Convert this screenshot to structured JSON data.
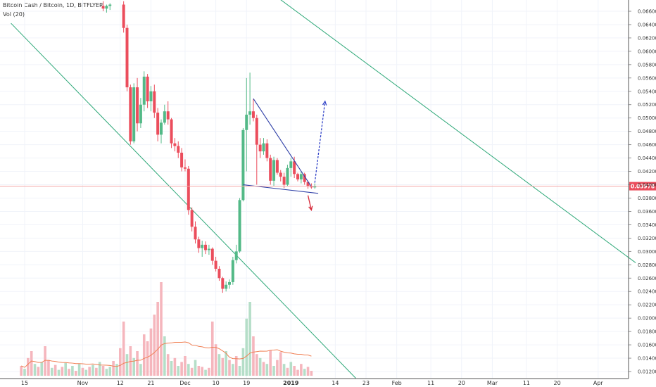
{
  "header": {
    "symbol_label": "Bitcoin Cash / Bitcoin, 1D, BITFLYER",
    "volume_label": "Vol (20)"
  },
  "colors": {
    "up": "#53b987",
    "down": "#eb4d5c",
    "up_volume": "#b5dec8",
    "down_volume": "#f5b6bd",
    "volume_ma": "#f07f53",
    "trendline": "#2ea878",
    "triangle": "#2d3ea6",
    "price_line": "#f3a6a6",
    "arrow_up": "#3244c8",
    "arrow_down": "#d62b3a"
  },
  "chart_data": {
    "type": "candlestick",
    "title": "",
    "y_range": [
      0.0118,
      0.067
    ],
    "y_ticks": [
      "0.06600",
      "0.06400",
      "0.06200",
      "0.06000",
      "0.05800",
      "0.05600",
      "0.05400",
      "0.05200",
      "0.05000",
      "0.04800",
      "0.04600",
      "0.04400",
      "0.04200",
      "0.04000",
      "0.03800",
      "0.03600",
      "0.03400",
      "0.03200",
      "0.03000",
      "0.02800",
      "0.02600",
      "0.02400",
      "0.02200",
      "0.02000",
      "0.01800",
      "0.01600",
      "0.01400",
      "0.01200"
    ],
    "x_ticks": [
      "15",
      "Nov",
      "12",
      "21",
      "Dec",
      "10",
      "19",
      "2019",
      "14",
      "23",
      "Feb",
      "11",
      "20",
      "Mar",
      "11",
      "20",
      "Apr"
    ],
    "last_price": "0.03978",
    "candles": [
      {
        "d": "Nov 07",
        "o": 0.0668,
        "h": 0.0675,
        "l": 0.066,
        "c": 0.0664
      },
      {
        "d": "Nov 08",
        "o": 0.0664,
        "h": 0.067,
        "l": 0.0658,
        "c": 0.0668
      },
      {
        "d": "Nov 09",
        "o": 0.0668,
        "h": 0.0672,
        "l": 0.0662,
        "c": 0.067
      },
      {
        "d": "Nov 13",
        "o": 0.067,
        "h": 0.0675,
        "l": 0.0628,
        "c": 0.0635
      },
      {
        "d": "Nov 14",
        "o": 0.0635,
        "h": 0.064,
        "l": 0.054,
        "c": 0.0546
      },
      {
        "d": "Nov 15",
        "o": 0.0546,
        "h": 0.055,
        "l": 0.046,
        "c": 0.0465
      },
      {
        "d": "Nov 16",
        "o": 0.0465,
        "h": 0.0552,
        "l": 0.0462,
        "c": 0.0546
      },
      {
        "d": "Nov 17",
        "o": 0.0546,
        "h": 0.056,
        "l": 0.048,
        "c": 0.0492
      },
      {
        "d": "Nov 18",
        "o": 0.0492,
        "h": 0.053,
        "l": 0.0485,
        "c": 0.052
      },
      {
        "d": "Nov 19",
        "o": 0.052,
        "h": 0.057,
        "l": 0.051,
        "c": 0.0562
      },
      {
        "d": "Nov 20",
        "o": 0.0562,
        "h": 0.0566,
        "l": 0.0515,
        "c": 0.0525
      },
      {
        "d": "Nov 21",
        "o": 0.0525,
        "h": 0.0548,
        "l": 0.051,
        "c": 0.054
      },
      {
        "d": "Nov 22",
        "o": 0.054,
        "h": 0.055,
        "l": 0.05,
        "c": 0.0508
      },
      {
        "d": "Nov 23",
        "o": 0.0508,
        "h": 0.0515,
        "l": 0.0465,
        "c": 0.0475
      },
      {
        "d": "Nov 24",
        "o": 0.0475,
        "h": 0.0498,
        "l": 0.0462,
        "c": 0.0493
      },
      {
        "d": "Nov 25",
        "o": 0.0493,
        "h": 0.052,
        "l": 0.049,
        "c": 0.051
      },
      {
        "d": "Nov 26",
        "o": 0.051,
        "h": 0.0525,
        "l": 0.049,
        "c": 0.0498
      },
      {
        "d": "Nov 27",
        "o": 0.0498,
        "h": 0.05,
        "l": 0.0455,
        "c": 0.0462
      },
      {
        "d": "Nov 28",
        "o": 0.0462,
        "h": 0.047,
        "l": 0.045,
        "c": 0.0458
      },
      {
        "d": "Nov 29",
        "o": 0.0458,
        "h": 0.0465,
        "l": 0.044,
        "c": 0.0448
      },
      {
        "d": "Nov 30",
        "o": 0.0448,
        "h": 0.0455,
        "l": 0.042,
        "c": 0.0426
      },
      {
        "d": "Dec 01",
        "o": 0.0426,
        "h": 0.0438,
        "l": 0.042,
        "c": 0.0424
      },
      {
        "d": "Dec 02",
        "o": 0.0424,
        "h": 0.0428,
        "l": 0.0355,
        "c": 0.0362
      },
      {
        "d": "Dec 03",
        "o": 0.0362,
        "h": 0.0366,
        "l": 0.033,
        "c": 0.0337
      },
      {
        "d": "Dec 04",
        "o": 0.0337,
        "h": 0.0345,
        "l": 0.0312,
        "c": 0.0318
      },
      {
        "d": "Dec 05",
        "o": 0.0318,
        "h": 0.0322,
        "l": 0.0298,
        "c": 0.0305
      },
      {
        "d": "Dec 06",
        "o": 0.0305,
        "h": 0.0316,
        "l": 0.0292,
        "c": 0.031
      },
      {
        "d": "Dec 07",
        "o": 0.031,
        "h": 0.0315,
        "l": 0.0296,
        "c": 0.0302
      },
      {
        "d": "Dec 08",
        "o": 0.0302,
        "h": 0.031,
        "l": 0.0295,
        "c": 0.0304
      },
      {
        "d": "Dec 09",
        "o": 0.0304,
        "h": 0.0306,
        "l": 0.028,
        "c": 0.0286
      },
      {
        "d": "Dec 10",
        "o": 0.0286,
        "h": 0.0292,
        "l": 0.027,
        "c": 0.0274
      },
      {
        "d": "Dec 11",
        "o": 0.0274,
        "h": 0.0278,
        "l": 0.0256,
        "c": 0.026
      },
      {
        "d": "Dec 12",
        "o": 0.026,
        "h": 0.0262,
        "l": 0.0238,
        "c": 0.0244
      },
      {
        "d": "Dec 13",
        "o": 0.0244,
        "h": 0.0255,
        "l": 0.024,
        "c": 0.025
      },
      {
        "d": "Dec 14",
        "o": 0.025,
        "h": 0.0258,
        "l": 0.0244,
        "c": 0.0254
      },
      {
        "d": "Dec 15",
        "o": 0.0254,
        "h": 0.0292,
        "l": 0.025,
        "c": 0.0287
      },
      {
        "d": "Dec 16",
        "o": 0.0287,
        "h": 0.031,
        "l": 0.0282,
        "c": 0.03
      },
      {
        "d": "Dec 17",
        "o": 0.03,
        "h": 0.038,
        "l": 0.0298,
        "c": 0.0377
      },
      {
        "d": "Dec 18",
        "o": 0.0377,
        "h": 0.0485,
        "l": 0.0375,
        "c": 0.0482
      },
      {
        "d": "Dec 19",
        "o": 0.0482,
        "h": 0.056,
        "l": 0.042,
        "c": 0.0505
      },
      {
        "d": "Dec 20",
        "o": 0.0505,
        "h": 0.0568,
        "l": 0.049,
        "c": 0.051
      },
      {
        "d": "Dec 21",
        "o": 0.051,
        "h": 0.0528,
        "l": 0.0495,
        "c": 0.05
      },
      {
        "d": "Dec 22",
        "o": 0.05,
        "h": 0.0505,
        "l": 0.04,
        "c": 0.046
      },
      {
        "d": "Dec 23",
        "o": 0.046,
        "h": 0.047,
        "l": 0.044,
        "c": 0.045
      },
      {
        "d": "Dec 24",
        "o": 0.045,
        "h": 0.047,
        "l": 0.0445,
        "c": 0.0462
      },
      {
        "d": "Dec 25",
        "o": 0.0462,
        "h": 0.0468,
        "l": 0.0435,
        "c": 0.044
      },
      {
        "d": "Dec 26",
        "o": 0.044,
        "h": 0.0445,
        "l": 0.04,
        "c": 0.0406
      },
      {
        "d": "Dec 27",
        "o": 0.0406,
        "h": 0.0442,
        "l": 0.0398,
        "c": 0.0437
      },
      {
        "d": "Dec 28",
        "o": 0.0437,
        "h": 0.044,
        "l": 0.0415,
        "c": 0.0418
      },
      {
        "d": "Dec 29",
        "o": 0.0418,
        "h": 0.0422,
        "l": 0.0405,
        "c": 0.0412
      },
      {
        "d": "Dec 30",
        "o": 0.0412,
        "h": 0.0418,
        "l": 0.0395,
        "c": 0.04
      },
      {
        "d": "Dec 31",
        "o": 0.04,
        "h": 0.043,
        "l": 0.0398,
        "c": 0.0425
      },
      {
        "d": "Jan 01",
        "o": 0.0425,
        "h": 0.044,
        "l": 0.0412,
        "c": 0.0435
      },
      {
        "d": "Jan 02",
        "o": 0.0435,
        "h": 0.0442,
        "l": 0.041,
        "c": 0.0416
      },
      {
        "d": "Jan 03",
        "o": 0.0416,
        "h": 0.0418,
        "l": 0.0405,
        "c": 0.0408
      },
      {
        "d": "Jan 04",
        "o": 0.0408,
        "h": 0.042,
        "l": 0.0402,
        "c": 0.0416
      },
      {
        "d": "Jan 05",
        "o": 0.0416,
        "h": 0.0418,
        "l": 0.04,
        "c": 0.0404
      },
      {
        "d": "Jan 06",
        "o": 0.0404,
        "h": 0.0406,
        "l": 0.0394,
        "c": 0.0398
      },
      {
        "d": "Jan 07",
        "o": 0.0398,
        "h": 0.0402,
        "l": 0.0394,
        "c": 0.0396
      },
      {
        "d": "Jan 08",
        "o": 0.0396,
        "h": 0.0402,
        "l": 0.0394,
        "c": 0.0398
      }
    ],
    "volume": [
      {
        "d": "Oct 14",
        "v": 0.1,
        "u": false
      },
      {
        "d": "Oct 15",
        "v": 0.07,
        "u": true
      },
      {
        "d": "Oct 16",
        "v": 0.18,
        "u": false
      },
      {
        "d": "Oct 17",
        "v": 0.25,
        "u": false
      },
      {
        "d": "Oct 18",
        "v": 0.12,
        "u": true
      },
      {
        "d": "Oct 19",
        "v": 0.09,
        "u": false
      },
      {
        "d": "Oct 20",
        "v": 0.14,
        "u": true
      },
      {
        "d": "Oct 21",
        "v": 0.3,
        "u": false
      },
      {
        "d": "Oct 22",
        "v": 0.16,
        "u": false
      },
      {
        "d": "Oct 23",
        "v": 0.08,
        "u": true
      },
      {
        "d": "Oct 24",
        "v": 0.11,
        "u": false
      },
      {
        "d": "Oct 25",
        "v": 0.06,
        "u": true
      },
      {
        "d": "Oct 26",
        "v": 0.09,
        "u": false
      },
      {
        "d": "Oct 27",
        "v": 0.13,
        "u": true
      },
      {
        "d": "Oct 28",
        "v": 0.07,
        "u": false
      },
      {
        "d": "Oct 29",
        "v": 0.1,
        "u": true
      },
      {
        "d": "Oct 30",
        "v": 0.05,
        "u": false
      },
      {
        "d": "Oct 31",
        "v": 0.12,
        "u": true
      },
      {
        "d": "Nov 01",
        "v": 0.08,
        "u": false
      },
      {
        "d": "Nov 02",
        "v": 0.06,
        "u": true
      },
      {
        "d": "Nov 03",
        "v": 0.09,
        "u": false
      },
      {
        "d": "Nov 04",
        "v": 0.11,
        "u": true
      },
      {
        "d": "Nov 05",
        "v": 0.08,
        "u": false
      },
      {
        "d": "Nov 06",
        "v": 0.14,
        "u": true
      },
      {
        "d": "Nov 07",
        "v": 0.1,
        "u": false
      },
      {
        "d": "Nov 08",
        "v": 0.07,
        "u": true
      },
      {
        "d": "Nov 09",
        "v": 0.09,
        "u": true
      },
      {
        "d": "Nov 10",
        "v": 0.15,
        "u": false
      },
      {
        "d": "Nov 11",
        "v": 0.12,
        "u": true
      },
      {
        "d": "Nov 12",
        "v": 0.28,
        "u": false
      },
      {
        "d": "Nov 13",
        "v": 0.55,
        "u": false
      },
      {
        "d": "Nov 14",
        "v": 0.22,
        "u": true
      },
      {
        "d": "Nov 15",
        "v": 0.3,
        "u": false
      },
      {
        "d": "Nov 16",
        "v": 0.18,
        "u": true
      },
      {
        "d": "Nov 17",
        "v": 0.25,
        "u": false
      },
      {
        "d": "Nov 18",
        "v": 0.12,
        "u": true
      },
      {
        "d": "Nov 19",
        "v": 0.42,
        "u": false
      },
      {
        "d": "Nov 20",
        "v": 0.35,
        "u": false
      },
      {
        "d": "Nov 21",
        "v": 0.48,
        "u": false
      },
      {
        "d": "Nov 22",
        "v": 0.62,
        "u": false
      },
      {
        "d": "Nov 23",
        "v": 0.75,
        "u": false
      },
      {
        "d": "Nov 24",
        "v": 0.95,
        "u": false
      },
      {
        "d": "Nov 25",
        "v": 0.4,
        "u": true
      },
      {
        "d": "Nov 26",
        "v": 0.22,
        "u": false
      },
      {
        "d": "Nov 27",
        "v": 0.15,
        "u": true
      },
      {
        "d": "Nov 28",
        "v": 0.18,
        "u": false
      },
      {
        "d": "Nov 29",
        "v": 0.1,
        "u": true
      },
      {
        "d": "Nov 30",
        "v": 0.14,
        "u": false
      },
      {
        "d": "Dec 01",
        "v": 0.2,
        "u": false
      },
      {
        "d": "Dec 02",
        "v": 0.12,
        "u": true
      },
      {
        "d": "Dec 03",
        "v": 0.08,
        "u": false
      },
      {
        "d": "Dec 04",
        "v": 0.16,
        "u": true
      },
      {
        "d": "Dec 05",
        "v": 0.1,
        "u": false
      },
      {
        "d": "Dec 06",
        "v": 0.09,
        "u": false
      },
      {
        "d": "Dec 07",
        "v": 0.06,
        "u": true
      },
      {
        "d": "Dec 08",
        "v": 0.08,
        "u": false
      },
      {
        "d": "Dec 09",
        "v": 0.55,
        "u": false
      },
      {
        "d": "Dec 10",
        "v": 0.32,
        "u": false
      },
      {
        "d": "Dec 11",
        "v": 0.22,
        "u": true
      },
      {
        "d": "Dec 12",
        "v": 0.18,
        "u": false
      },
      {
        "d": "Dec 13",
        "v": 0.25,
        "u": true
      },
      {
        "d": "Dec 14",
        "v": 0.16,
        "u": false
      },
      {
        "d": "Dec 15",
        "v": 0.12,
        "u": true
      },
      {
        "d": "Dec 16",
        "v": 0.2,
        "u": false
      },
      {
        "d": "Dec 17",
        "v": 0.1,
        "u": true
      },
      {
        "d": "Dec 18",
        "v": 0.28,
        "u": true
      },
      {
        "d": "Dec 19",
        "v": 0.58,
        "u": true
      },
      {
        "d": "Dec 20",
        "v": 0.75,
        "u": true
      },
      {
        "d": "Dec 21",
        "v": 0.4,
        "u": false
      },
      {
        "d": "Dec 22",
        "v": 0.22,
        "u": false
      },
      {
        "d": "Dec 23",
        "v": 0.18,
        "u": true
      },
      {
        "d": "Dec 24",
        "v": 0.14,
        "u": false
      },
      {
        "d": "Dec 25",
        "v": 0.12,
        "u": true
      },
      {
        "d": "Dec 26",
        "v": 0.26,
        "u": false
      },
      {
        "d": "Dec 27",
        "v": 0.1,
        "u": true
      },
      {
        "d": "Dec 28",
        "v": 0.16,
        "u": false
      },
      {
        "d": "Dec 29",
        "v": 0.24,
        "u": false
      },
      {
        "d": "Dec 30",
        "v": 0.12,
        "u": true
      },
      {
        "d": "Dec 31",
        "v": 0.08,
        "u": false
      },
      {
        "d": "Jan 01",
        "v": 0.14,
        "u": true
      },
      {
        "d": "Jan 02",
        "v": 0.1,
        "u": false
      },
      {
        "d": "Jan 03",
        "v": 0.06,
        "u": false
      },
      {
        "d": "Jan 04",
        "v": 0.12,
        "u": false
      },
      {
        "d": "Jan 05",
        "v": 0.07,
        "u": true
      },
      {
        "d": "Jan 06",
        "v": 0.09,
        "u": false
      },
      {
        "d": "Jan 07",
        "v": 0.05,
        "u": false
      }
    ],
    "annotations": {
      "trendline_1": {
        "from": {
          "date": "Oct 11",
          "price": 0.0642
        },
        "to": {
          "date": "Jan 20",
          "price": 0.011
        }
      },
      "trendline_2": {
        "from": {
          "date": "Dec 23",
          "price": 0.07
        },
        "to": {
          "date": "Apr 12",
          "price": 0.0283
        }
      },
      "triangle_upper": {
        "from": {
          "date": "Dec 21",
          "price": 0.0529
        },
        "to": {
          "date": "Jan 07",
          "price": 0.0397
        }
      },
      "triangle_lower": {
        "from": {
          "date": "Dec 18",
          "price": 0.04
        },
        "to": {
          "date": "Jan 09",
          "price": 0.0387
        }
      },
      "arrow_up": {
        "from": {
          "date": "Jan 08",
          "price": 0.0403
        },
        "to": {
          "date": "Jan 11",
          "price": 0.0525
        }
      },
      "arrow_down": {
        "from": {
          "date": "Jan 06",
          "price": 0.0384
        },
        "to": {
          "date": "Jan 07",
          "price": 0.0362
        }
      }
    }
  }
}
